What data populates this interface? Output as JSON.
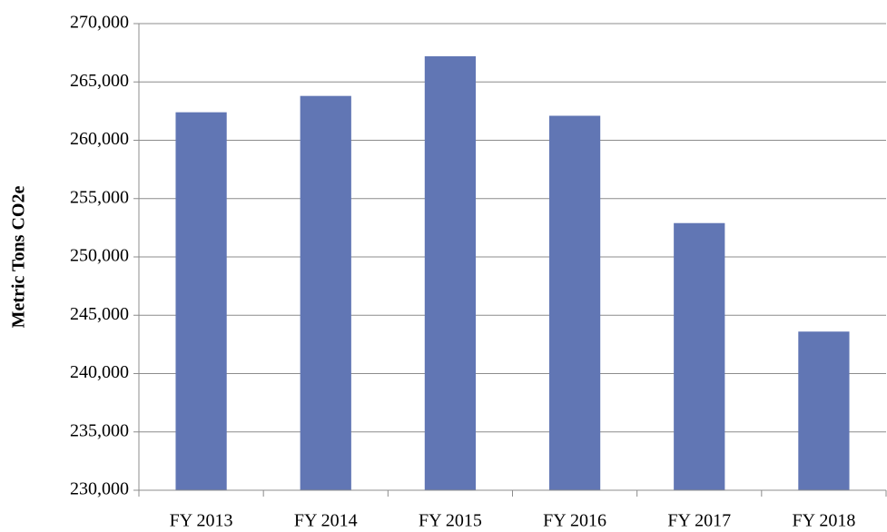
{
  "chart_data": {
    "type": "bar",
    "y_label": "Metric Tons CO2e",
    "categories": [
      "FY 2013",
      "FY 2014",
      "FY 2015",
      "FY 2016",
      "FY 2017",
      "FY 2018"
    ],
    "values": [
      262400,
      263800,
      267200,
      262100,
      252900,
      243600
    ],
    "color": "#6176b4",
    "ylim": [
      230000,
      270000
    ],
    "yticks": [
      {
        "value": 230000,
        "label": "230,000"
      },
      {
        "value": 235000,
        "label": "235,000"
      },
      {
        "value": 240000,
        "label": "240,000"
      },
      {
        "value": 245000,
        "label": "245,000"
      },
      {
        "value": 250000,
        "label": "250,000"
      },
      {
        "value": 255000,
        "label": "255,000"
      },
      {
        "value": 260000,
        "label": "260,000"
      },
      {
        "value": 265000,
        "label": "265,000"
      },
      {
        "value": 270000,
        "label": "270,000"
      }
    ],
    "grid": true
  }
}
